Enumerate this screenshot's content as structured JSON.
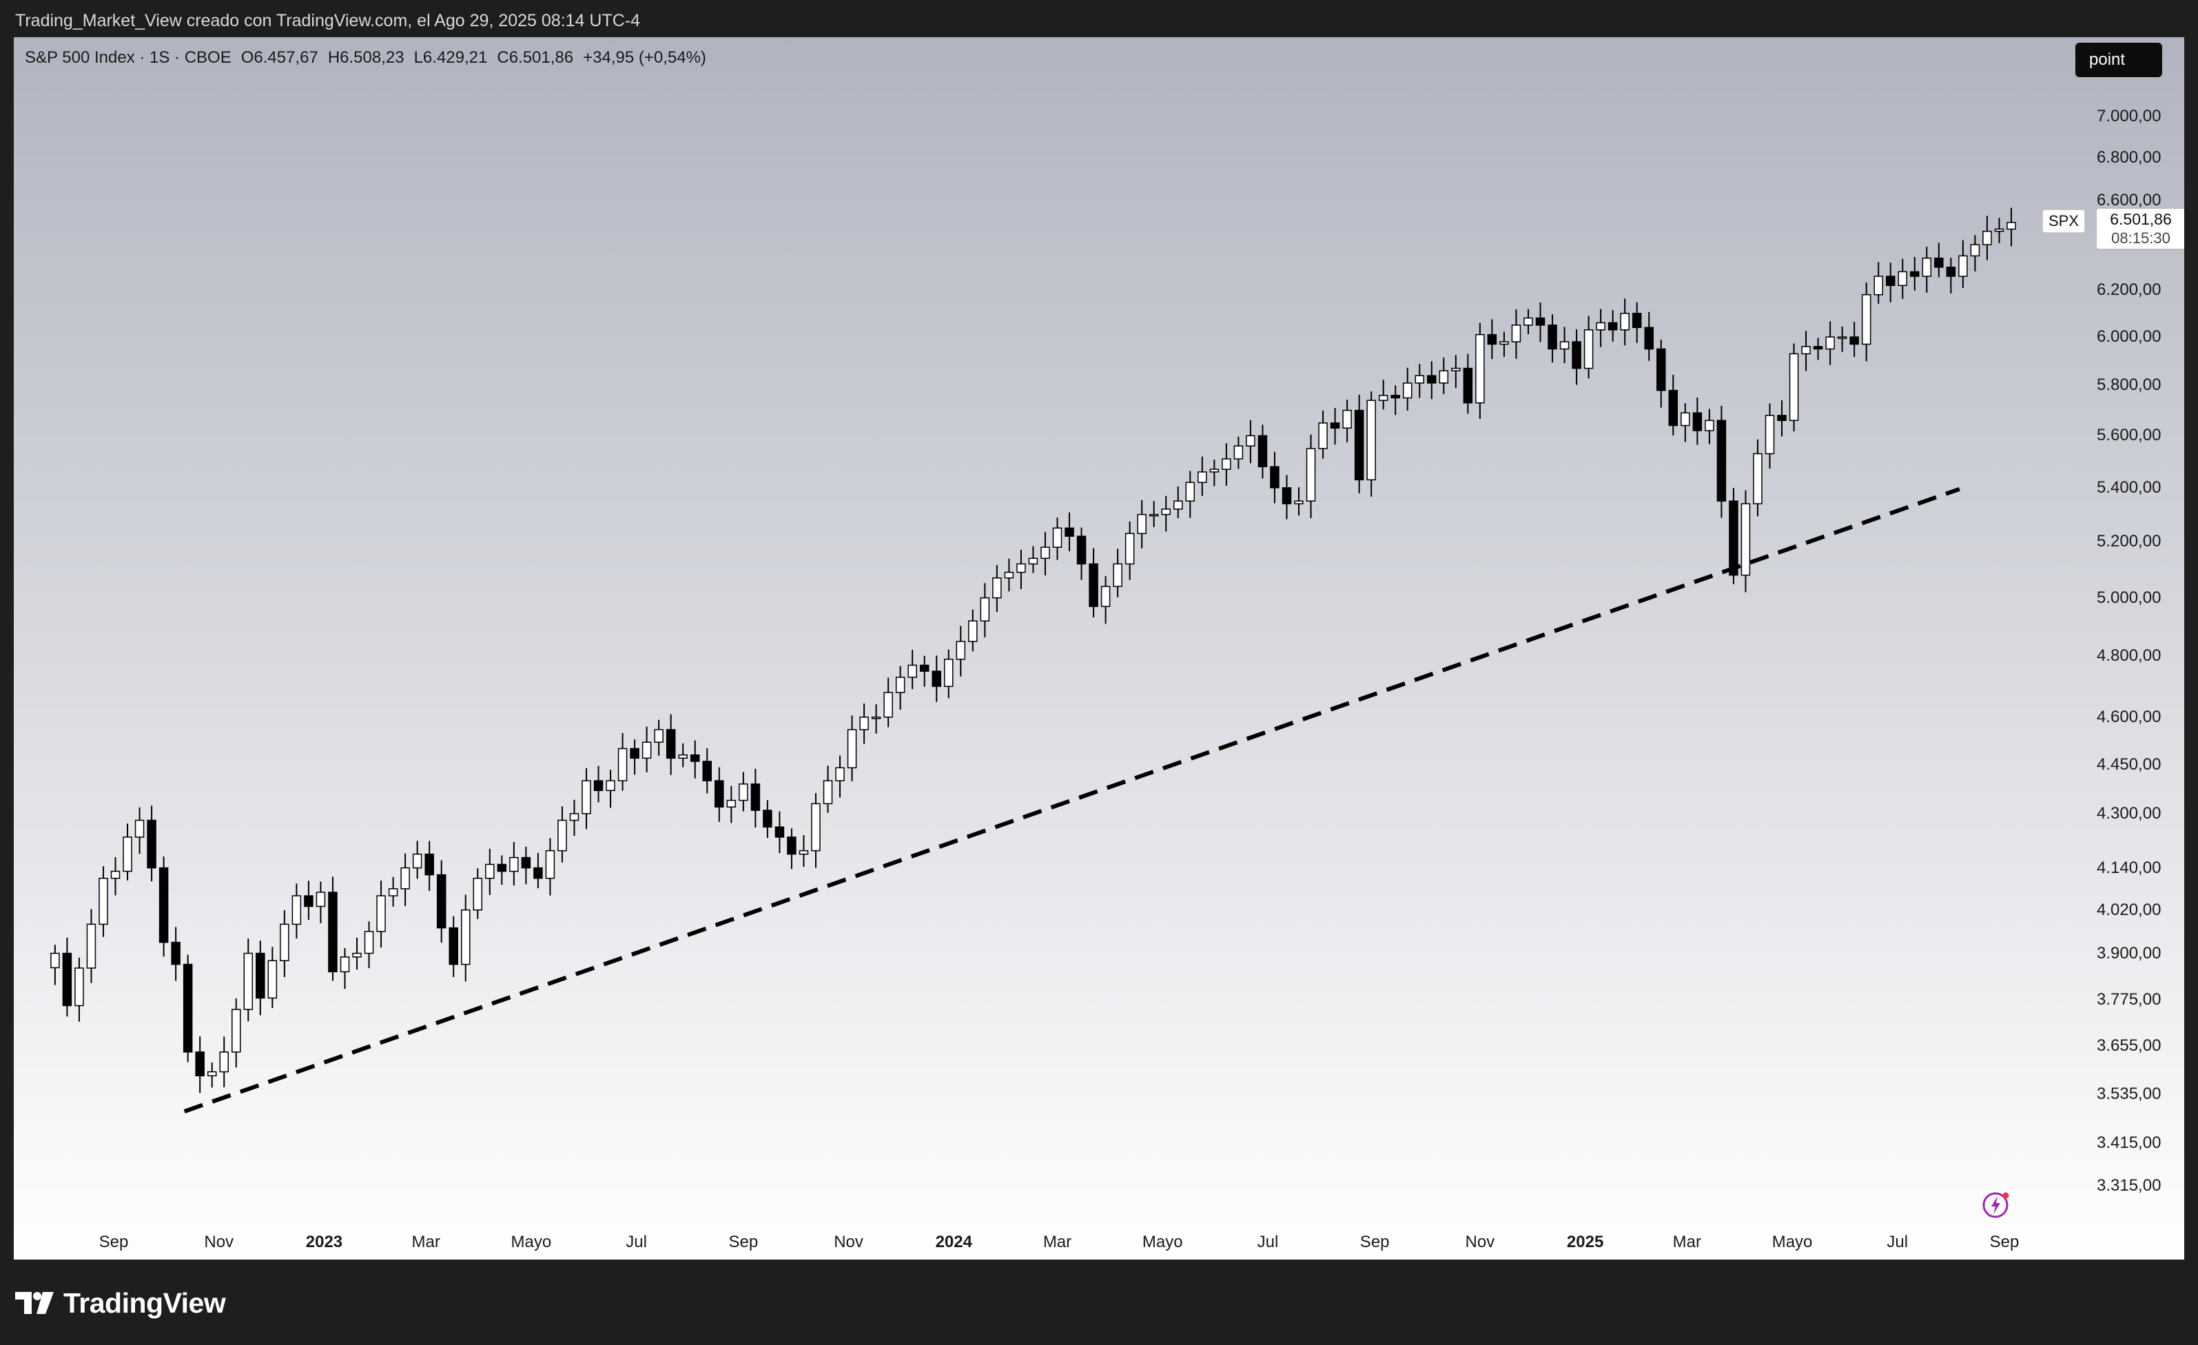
{
  "caption": "Trading_Market_View creado con TradingView.com, el Ago 29, 2025 08:14 UTC-4",
  "legend": {
    "symbol": "S&P 500 Index · 1S · CBOE",
    "open": "O6.457,67",
    "high": "H6.508,23",
    "low": "L6.429,21",
    "close": "C6.501,86",
    "change": "+34,95 (+0,54%)"
  },
  "toolbar": {
    "point_label": "point"
  },
  "price_tag": {
    "symbol": "SPX",
    "price": "6.501,86",
    "countdown": "08:15:30"
  },
  "footer": {
    "brand": "TradingView",
    "logo_icon": "tradingview-logo-icon"
  },
  "icons": {
    "snapshot": "lightning-icon"
  },
  "colors": {
    "up_body": "#ffffff",
    "down_body": "#000000",
    "candle_border": "#000000",
    "trendline": "#000000"
  },
  "chart_data": {
    "type": "candlestick",
    "interval": "1 week",
    "scale": "log",
    "ylim": [
      3250,
      7300
    ],
    "y_ticks": [
      "7.000,00",
      "6.800,00",
      "6.600,00",
      "6.200,00",
      "6.000,00",
      "5.800,00",
      "5.600,00",
      "5.400,00",
      "5.200,00",
      "5.000,00",
      "4.800,00",
      "4.600,00",
      "4.450,00",
      "4.300,00",
      "4.140,00",
      "4.020,00",
      "3.900,00",
      "3.775,00",
      "3.655,00",
      "3.535,00",
      "3.415,00",
      "3.315,00"
    ],
    "x_ticks": [
      {
        "label": "Sep",
        "date": "2022-09-01"
      },
      {
        "label": "Nov",
        "date": "2022-11-01"
      },
      {
        "label": "2023",
        "date": "2023-01-01",
        "bold": true
      },
      {
        "label": "Mar",
        "date": "2023-03-01"
      },
      {
        "label": "Mayo",
        "date": "2023-05-01"
      },
      {
        "label": "Jul",
        "date": "2023-07-01"
      },
      {
        "label": "Sep",
        "date": "2023-09-01"
      },
      {
        "label": "Nov",
        "date": "2023-11-01"
      },
      {
        "label": "2024",
        "date": "2024-01-01",
        "bold": true
      },
      {
        "label": "Mar",
        "date": "2024-03-01"
      },
      {
        "label": "Mayo",
        "date": "2024-05-01"
      },
      {
        "label": "Jul",
        "date": "2024-07-01"
      },
      {
        "label": "Sep",
        "date": "2024-09-01"
      },
      {
        "label": "Nov",
        "date": "2024-11-01"
      },
      {
        "label": "2025",
        "date": "2025-01-01",
        "bold": true
      },
      {
        "label": "Mar",
        "date": "2025-03-01"
      },
      {
        "label": "Mayo",
        "date": "2025-05-01"
      },
      {
        "label": "Jul",
        "date": "2025-07-01"
      },
      {
        "label": "Sep",
        "date": "2025-09-01"
      }
    ],
    "closes": [
      3900,
      3760,
      3860,
      3980,
      4110,
      4130,
      4230,
      4280,
      4140,
      3930,
      3870,
      3640,
      3580,
      3590,
      3640,
      3750,
      3900,
      3780,
      3880,
      3980,
      4060,
      4030,
      4070,
      3850,
      3890,
      3900,
      3960,
      4060,
      4080,
      4140,
      4180,
      4120,
      3970,
      3870,
      4020,
      4110,
      4150,
      4130,
      4170,
      4140,
      4110,
      4190,
      4280,
      4300,
      4400,
      4370,
      4400,
      4500,
      4470,
      4520,
      4560,
      4470,
      4480,
      4460,
      4400,
      4320,
      4340,
      4390,
      4310,
      4260,
      4230,
      4180,
      4190,
      4330,
      4400,
      4440,
      4560,
      4600,
      4600,
      4680,
      4730,
      4770,
      4750,
      4700,
      4790,
      4850,
      4920,
      5000,
      5070,
      5090,
      5120,
      5140,
      5180,
      5250,
      5220,
      5120,
      4970,
      5040,
      5120,
      5230,
      5300,
      5300,
      5320,
      5350,
      5420,
      5460,
      5470,
      5510,
      5560,
      5600,
      5480,
      5400,
      5340,
      5350,
      5550,
      5650,
      5630,
      5700,
      5430,
      5740,
      5760,
      5750,
      5810,
      5840,
      5810,
      5860,
      5870,
      5730,
      6010,
      5970,
      5980,
      6050,
      6080,
      6050,
      5950,
      5980,
      5870,
      6030,
      6060,
      6030,
      6100,
      6040,
      5950,
      5780,
      5640,
      5690,
      5620,
      5660,
      5350,
      5080,
      5340,
      5530,
      5680,
      5660,
      5930,
      5960,
      5950,
      6000,
      6000,
      5970,
      6180,
      6260,
      6220,
      6280,
      6260,
      6340,
      6300,
      6260,
      6350,
      6400,
      6460,
      6470,
      6500
    ],
    "trendline": [
      {
        "date": "2022-10-12",
        "price": 3492
      },
      {
        "date": "2025-08-06",
        "price": 5395
      }
    ]
  }
}
